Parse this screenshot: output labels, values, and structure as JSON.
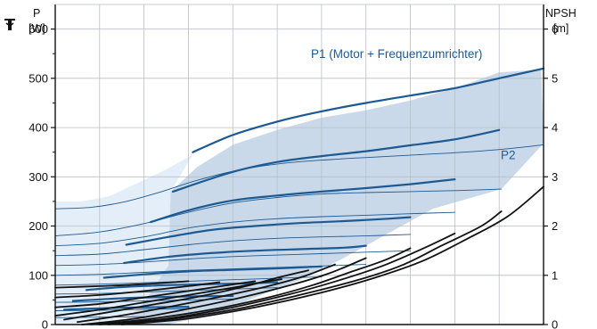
{
  "chart_data": {
    "type": "line",
    "left_axis": {
      "label": "P",
      "unit": "[W]",
      "range": [
        0,
        650
      ],
      "ticks": [
        0,
        100,
        200,
        300,
        400,
        500,
        600
      ]
    },
    "right_axis": {
      "label": "NPSH",
      "unit": "[m]",
      "range": [
        0,
        6.5
      ],
      "ticks": [
        0,
        1,
        2,
        3,
        4,
        5,
        6
      ]
    },
    "x_range": [
      0,
      11
    ],
    "x_gridlines": [
      1,
      2,
      3,
      4,
      5,
      6,
      7,
      8,
      9,
      10,
      11
    ],
    "y_gridlines": [
      100,
      200,
      300,
      400,
      500,
      600
    ],
    "grid": true,
    "annotations": [
      {
        "text": "P1 (Motor + Frequenzumrichter)",
        "x": 10.0,
        "y": 550
      },
      {
        "text": "P2",
        "x": 9.6,
        "y": 345
      }
    ],
    "colors": {
      "p1_line": "#1d5a93",
      "p2_line": "#1d5a93",
      "p1_area": "#c9d9ea",
      "p2_area": "#e3eef9",
      "npsh_line": "#111111",
      "grid": "#b9bec4"
    },
    "p1_area": [
      [
        1.45,
        0
      ],
      [
        2.5,
        0
      ],
      [
        3.6,
        20
      ],
      [
        4.5,
        55
      ],
      [
        5.5,
        90
      ],
      [
        6.5,
        135
      ],
      [
        7.5,
        185
      ],
      [
        8.5,
        235
      ],
      [
        10.05,
        275
      ],
      [
        11.0,
        368
      ],
      [
        10.95,
        518
      ],
      [
        10.0,
        512
      ],
      [
        9.0,
        480
      ],
      [
        8.0,
        455
      ],
      [
        7.0,
        435
      ],
      [
        6.0,
        420
      ],
      [
        5.0,
        395
      ],
      [
        4.0,
        365
      ],
      [
        3.2,
        320
      ],
      [
        2.6,
        270
      ],
      [
        2.55,
        120
      ],
      [
        2.0,
        45
      ],
      [
        1.6,
        10
      ]
    ],
    "p2_area": [
      [
        0,
        0
      ],
      [
        1.45,
        0
      ],
      [
        1.6,
        10
      ],
      [
        2.0,
        45
      ],
      [
        2.55,
        120
      ],
      [
        2.6,
        270
      ],
      [
        3.1,
        345
      ],
      [
        2.5,
        315
      ],
      [
        1.8,
        285
      ],
      [
        1.2,
        260
      ],
      [
        0.6,
        250
      ],
      [
        0,
        250
      ]
    ],
    "series": [
      {
        "group": "P1",
        "x": [
          3.1,
          4.0,
          5.0,
          6.0,
          7.0,
          8.0,
          9.0,
          10.0,
          11.0
        ],
        "y": [
          350,
          385,
          412,
          433,
          450,
          465,
          480,
          500,
          520
        ]
      },
      {
        "group": "P1",
        "x": [
          2.65,
          4.0,
          5.0,
          6.0,
          7.0,
          8.0,
          9.0,
          10.0
        ],
        "y": [
          270,
          310,
          330,
          342,
          352,
          364,
          376,
          395
        ]
      },
      {
        "group": "P1",
        "x": [
          2.15,
          3.0,
          4.0,
          5.0,
          6.0,
          7.0,
          8.0,
          9.0
        ],
        "y": [
          208,
          232,
          252,
          262,
          270,
          277,
          285,
          295
        ]
      },
      {
        "group": "P1",
        "x": [
          1.6,
          2.5,
          3.5,
          4.5,
          5.5,
          6.5,
          7.5,
          8.0
        ],
        "y": [
          162,
          177,
          192,
          200,
          206,
          210,
          215,
          218
        ]
      },
      {
        "group": "P1",
        "x": [
          1.55,
          2.5,
          3.5,
          4.5,
          5.5,
          6.5,
          7.0
        ],
        "y": [
          125,
          137,
          145,
          150,
          153,
          156,
          160
        ]
      },
      {
        "group": "P1",
        "x": [
          1.1,
          2.0,
          3.0,
          4.0,
          5.0,
          6.0
        ],
        "y": [
          95,
          102,
          108,
          111,
          114,
          118
        ]
      },
      {
        "group": "P1",
        "x": [
          0.7,
          1.5,
          2.5,
          3.5,
          4.5,
          5.0
        ],
        "y": [
          70,
          76,
          80,
          82,
          84,
          86
        ]
      },
      {
        "group": "P1",
        "x": [
          0.4,
          1.2,
          2.0,
          3.0,
          4.0
        ],
        "y": [
          48,
          52,
          55,
          57,
          58
        ]
      },
      {
        "group": "P1",
        "x": [
          0.2,
          1.0,
          2.0,
          3.0
        ],
        "y": [
          30,
          33,
          35,
          36
        ]
      },
      {
        "group": "P2",
        "x": [
          0,
          0.8,
          1.6,
          2.4,
          3.2,
          4.2,
          5.2,
          6.2,
          7.2,
          8.2,
          9.2,
          10.2,
          11.0
        ],
        "y": [
          235,
          238,
          250,
          270,
          293,
          315,
          328,
          335,
          340,
          345,
          350,
          357,
          365
        ]
      },
      {
        "group": "P2",
        "x": [
          0,
          1.0,
          2.0,
          3.0,
          4.0,
          5.0,
          6.0,
          7.0,
          8.0,
          9.0,
          10.05
        ],
        "y": [
          180,
          188,
          205,
          228,
          247,
          258,
          265,
          268,
          270,
          272,
          275
        ]
      },
      {
        "group": "P2",
        "x": [
          0,
          1.0,
          2.0,
          3.0,
          4.0,
          5.0,
          6.0,
          7.0,
          8.0,
          9.0
        ],
        "y": [
          160,
          165,
          178,
          196,
          208,
          215,
          219,
          222,
          225,
          228
        ]
      },
      {
        "group": "P2",
        "x": [
          0,
          1.0,
          2.0,
          3.0,
          4.0,
          5.0,
          6.0,
          7.0,
          8.0
        ],
        "y": [
          140,
          143,
          152,
          162,
          170,
          175,
          178,
          180,
          183
        ]
      },
      {
        "group": "P2",
        "x": [
          0,
          1.0,
          2.0,
          3.0,
          4.0,
          5.0,
          6.0,
          7.0,
          8.0
        ],
        "y": [
          120,
          122,
          127,
          133,
          138,
          141,
          144,
          147,
          150
        ]
      },
      {
        "group": "P2",
        "x": [
          0,
          1.0,
          2.0,
          3.0,
          4.0,
          5.0,
          6.0,
          7.0
        ],
        "y": [
          100,
          102,
          106,
          110,
          113,
          116,
          119,
          122
        ]
      },
      {
        "group": "P2",
        "x": [
          0,
          1.0,
          2.0,
          3.0,
          4.0,
          5.0,
          6.0
        ],
        "y": [
          80,
          82,
          85,
          88,
          91,
          94,
          97
        ]
      },
      {
        "group": "P2",
        "x": [
          0,
          1.0,
          2.0,
          3.0,
          4.0,
          5.0
        ],
        "y": [
          62,
          63,
          66,
          69,
          72,
          75
        ]
      },
      {
        "group": "P2",
        "x": [
          0,
          1.0,
          2.0,
          3.0,
          4.0
        ],
        "y": [
          45,
          46,
          48,
          50,
          52
        ]
      },
      {
        "group": "P2",
        "x": [
          0,
          1.0,
          2.0,
          3.0
        ],
        "y": [
          28,
          29,
          31,
          32
        ]
      },
      {
        "group": "P2",
        "x": [
          0,
          1.0,
          2.0
        ],
        "y": [
          14,
          15,
          16
        ]
      },
      {
        "group": "NPSH",
        "x": [
          1.5,
          3.0,
          4.5,
          6.0,
          7.2,
          8.3,
          9.3,
          10.2,
          11.0
        ],
        "y": [
          0,
          0.12,
          0.35,
          0.65,
          0.95,
          1.3,
          1.75,
          2.2,
          2.8
        ]
      },
      {
        "group": "NPSH",
        "x": [
          1.2,
          2.5,
          4.0,
          5.5,
          6.8,
          7.8,
          8.7,
          9.6,
          10.05
        ],
        "y": [
          0,
          0.1,
          0.3,
          0.6,
          0.9,
          1.2,
          1.6,
          2.0,
          2.3
        ]
      },
      {
        "group": "NPSH",
        "x": [
          1.0,
          2.5,
          4.0,
          5.3,
          6.4,
          7.4,
          8.3,
          9.0
        ],
        "y": [
          0,
          0.12,
          0.35,
          0.62,
          0.9,
          1.2,
          1.55,
          1.85
        ]
      },
      {
        "group": "NPSH",
        "x": [
          0.8,
          2.0,
          3.5,
          4.8,
          5.8,
          6.6,
          7.4,
          8.0
        ],
        "y": [
          0,
          0.1,
          0.3,
          0.55,
          0.8,
          1.05,
          1.3,
          1.55
        ]
      },
      {
        "group": "NPSH",
        "x": [
          0.6,
          1.8,
          3.0,
          4.2,
          5.3,
          6.2,
          7.0
        ],
        "y": [
          0,
          0.12,
          0.32,
          0.55,
          0.8,
          1.05,
          1.35
        ]
      },
      {
        "group": "NPSH",
        "x": [
          0.5,
          1.6,
          2.8,
          3.8,
          4.8,
          5.6,
          6.3
        ],
        "y": [
          0.05,
          0.2,
          0.4,
          0.58,
          0.78,
          0.98,
          1.22
        ]
      },
      {
        "group": "NPSH",
        "x": [
          0.2,
          1.2,
          2.3,
          3.3,
          4.3,
          5.0,
          5.7
        ],
        "y": [
          0.1,
          0.25,
          0.42,
          0.58,
          0.78,
          0.95,
          1.1
        ]
      },
      {
        "group": "NPSH",
        "x": [
          0,
          1.0,
          2.0,
          3.0,
          4.0,
          4.6,
          5.1
        ],
        "y": [
          0.18,
          0.3,
          0.45,
          0.6,
          0.75,
          0.85,
          0.92
        ]
      },
      {
        "group": "NPSH",
        "x": [
          0,
          1.0,
          2.0,
          3.0,
          3.9,
          4.5
        ],
        "y": [
          0.35,
          0.42,
          0.55,
          0.68,
          0.8,
          0.88
        ]
      },
      {
        "group": "NPSH",
        "x": [
          0,
          1.0,
          2.0,
          3.0,
          3.7
        ],
        "y": [
          0.55,
          0.6,
          0.68,
          0.78,
          0.86
        ]
      },
      {
        "group": "NPSH",
        "x": [
          0,
          1.0,
          2.0,
          3.0
        ],
        "y": [
          0.75,
          0.78,
          0.82,
          0.88
        ]
      }
    ]
  }
}
